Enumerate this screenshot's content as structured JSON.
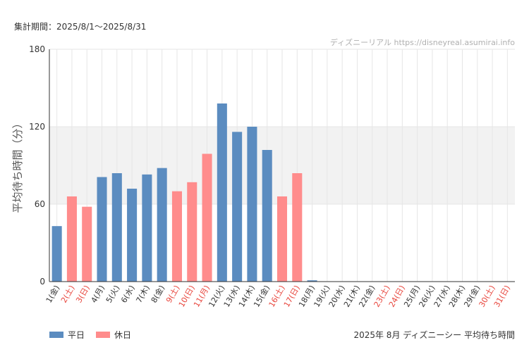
{
  "period_label": "集計期間：2025/8/1〜2025/8/31",
  "watermark": "ディズニーリアル https://disneyreal.asumirai.info",
  "caption": "2025年 8月 ディズニーシー 平均待ち時間",
  "colors": {
    "weekday": "#5b8cc0",
    "holiday": "#ff8c8c",
    "band": "#f2f2f2",
    "grid": "#e6e6e6",
    "holiday_label": "#e8453c"
  },
  "legend": [
    {
      "label": "平日",
      "color": "#5b8cc0"
    },
    {
      "label": "休日",
      "color": "#ff8c8c"
    }
  ],
  "chart_data": {
    "type": "bar",
    "ylabel": "平均待ち時間（分）",
    "ylim": [
      0,
      180
    ],
    "yticks": [
      0,
      60,
      120,
      180
    ],
    "band": [
      60,
      120
    ],
    "categories": [
      "1(金)",
      "2(土)",
      "3(日)",
      "4(月)",
      "5(火)",
      "6(水)",
      "7(木)",
      "8(金)",
      "9(土)",
      "10(日)",
      "11(月)",
      "12(火)",
      "13(水)",
      "14(木)",
      "15(金)",
      "16(土)",
      "17(日)",
      "18(月)",
      "19(火)",
      "20(水)",
      "21(木)",
      "22(金)",
      "23(土)",
      "24(日)",
      "25(月)",
      "26(火)",
      "27(水)",
      "28(木)",
      "29(金)",
      "30(土)",
      "31(日)"
    ],
    "holiday": [
      false,
      true,
      true,
      false,
      false,
      false,
      false,
      false,
      true,
      true,
      true,
      false,
      false,
      false,
      false,
      true,
      true,
      false,
      false,
      false,
      false,
      false,
      true,
      true,
      false,
      false,
      false,
      false,
      false,
      true,
      true
    ],
    "values": [
      43,
      66,
      58,
      81,
      84,
      72,
      83,
      88,
      70,
      77,
      99,
      138,
      116,
      120,
      102,
      66,
      84,
      1,
      0,
      0,
      0,
      0,
      0,
      0,
      0,
      0,
      0,
      0,
      0,
      0,
      0
    ]
  }
}
